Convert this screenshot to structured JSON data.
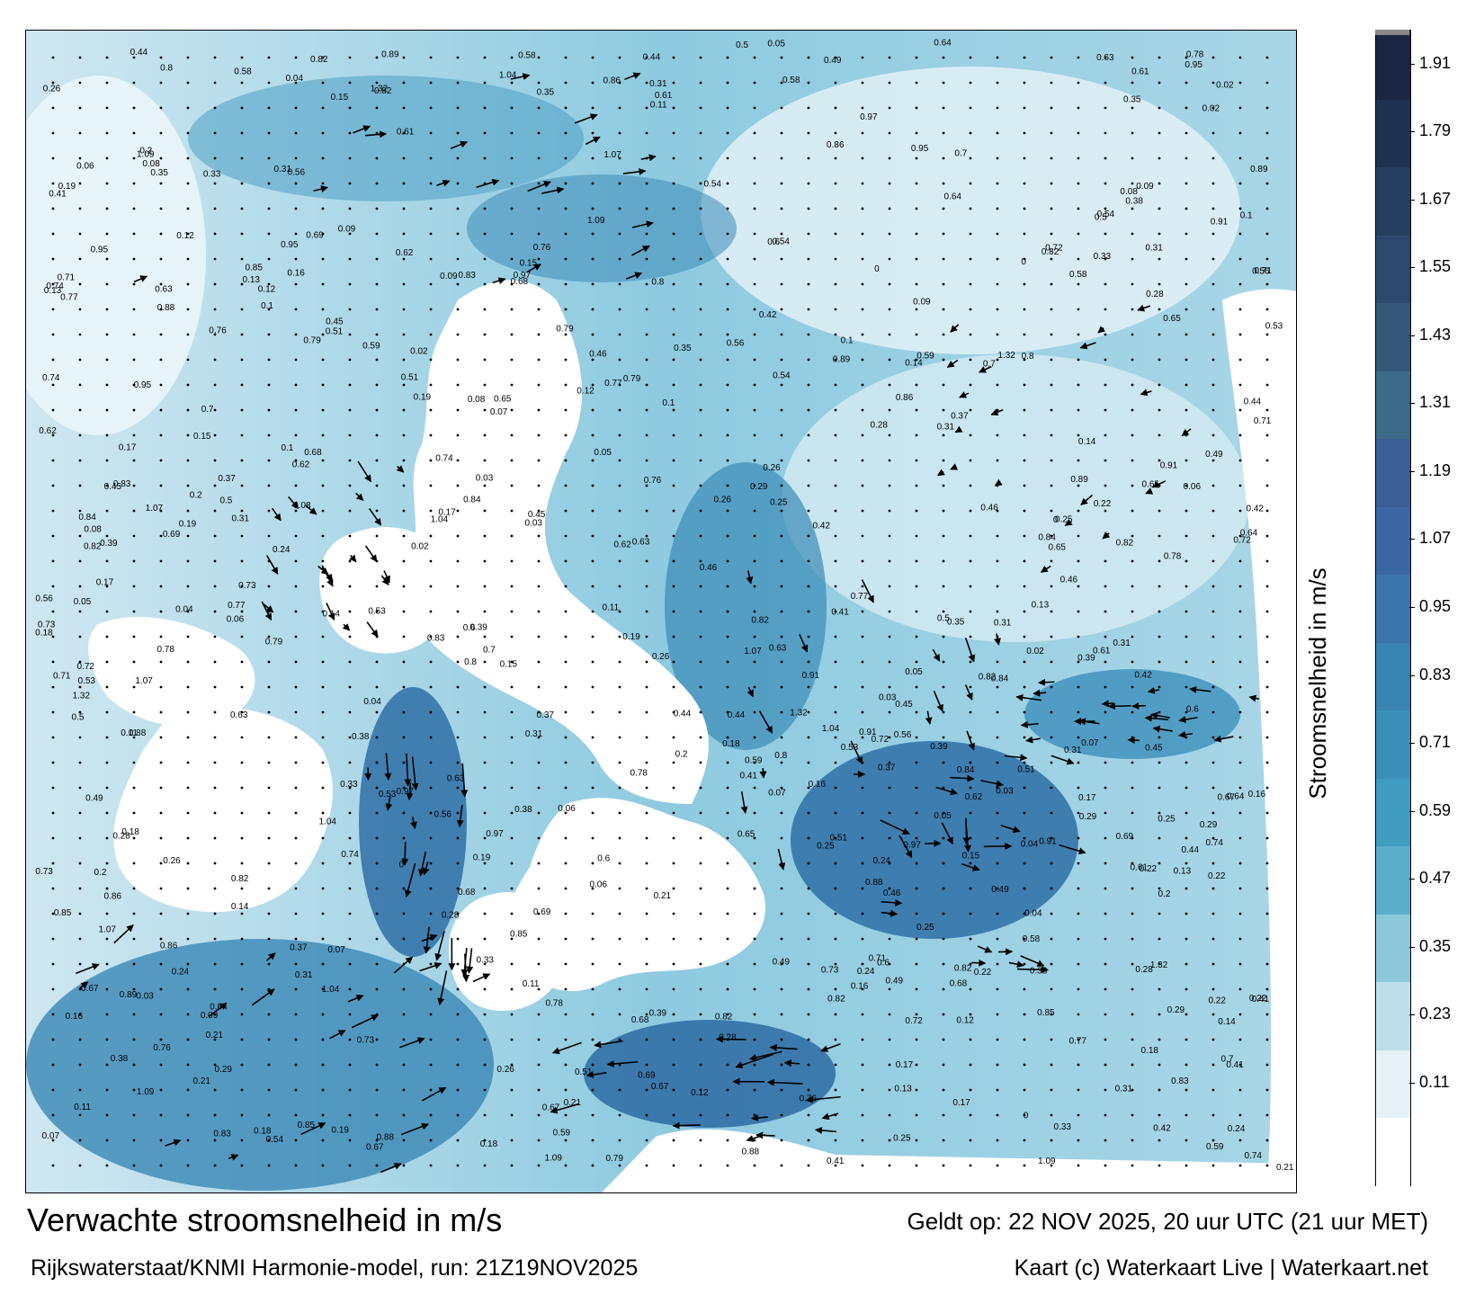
{
  "title": "Verwachte stroomsnelheid in m/s",
  "subtitle": "Rijkswaterstaat/KNMI Harmonie-model, run: 21Z19NOV2025",
  "validity": "Geldt op: 22 NOV 2025, 20 uur UTC (21 uur MET)",
  "credit": "Kaart (c) Waterkaart Live | Waterkaart.net",
  "colorbar": {
    "label": "Stroomsnelheid in m/s",
    "ticks": [
      "0.11",
      "0.23",
      "0.35",
      "0.47",
      "0.59",
      "0.71",
      "0.83",
      "0.95",
      "1.07",
      "1.19",
      "1.31",
      "1.43",
      "1.55",
      "1.67",
      "1.79",
      "1.91"
    ],
    "colors": [
      "#ffffff",
      "#e4f1f7",
      "#bddeeb",
      "#8cc8dc",
      "#5aaecb",
      "#3e9cc0",
      "#3a8fb8",
      "#3783b1",
      "#3a74ab",
      "#3a67a4",
      "#3a5e96",
      "#3c6a89",
      "#335878",
      "#2c4a6d",
      "#263e60",
      "#1f3252",
      "#1a2643"
    ]
  },
  "sample_labels": [
    "0.26",
    "0.25",
    "0.28",
    "0.22",
    "0.18",
    "0.17",
    "0.19",
    "0.44",
    "0.41",
    "0.31",
    "0.63",
    "0.49",
    "0.56",
    "0.74",
    "0.82",
    "0.72",
    "0.78",
    "0.67",
    "0.82",
    "0.83",
    "0.86",
    "0.97",
    "1.07",
    "0.95",
    "0.65",
    "0.58",
    "0.45",
    "0.38",
    "0.39",
    "0.59",
    "0.33",
    "0.35",
    "0.53",
    "0.54",
    "0.42",
    "0.31",
    "0.14",
    "0.12",
    "0.15",
    "0.13",
    "0.16",
    "0.11",
    "0.08",
    "0.05",
    "0.03",
    "0.02",
    "0.09",
    "0.07",
    "0.04",
    "0.06",
    "0.1",
    "0.2",
    "0.21",
    "0.24",
    "0.29",
    "0.37",
    "0.46",
    "0.5",
    "0.51",
    "0.6",
    "0.61",
    "0.62",
    "0.64",
    "0.68",
    "0.69",
    "0.7",
    "0.71",
    "0.73",
    "0.76",
    "0.77",
    "0.79",
    "0.8",
    "0.84",
    "0.85",
    "0.88",
    "0.89",
    "0.91",
    "1.04",
    "1.09",
    "1.32",
    "0"
  ]
}
